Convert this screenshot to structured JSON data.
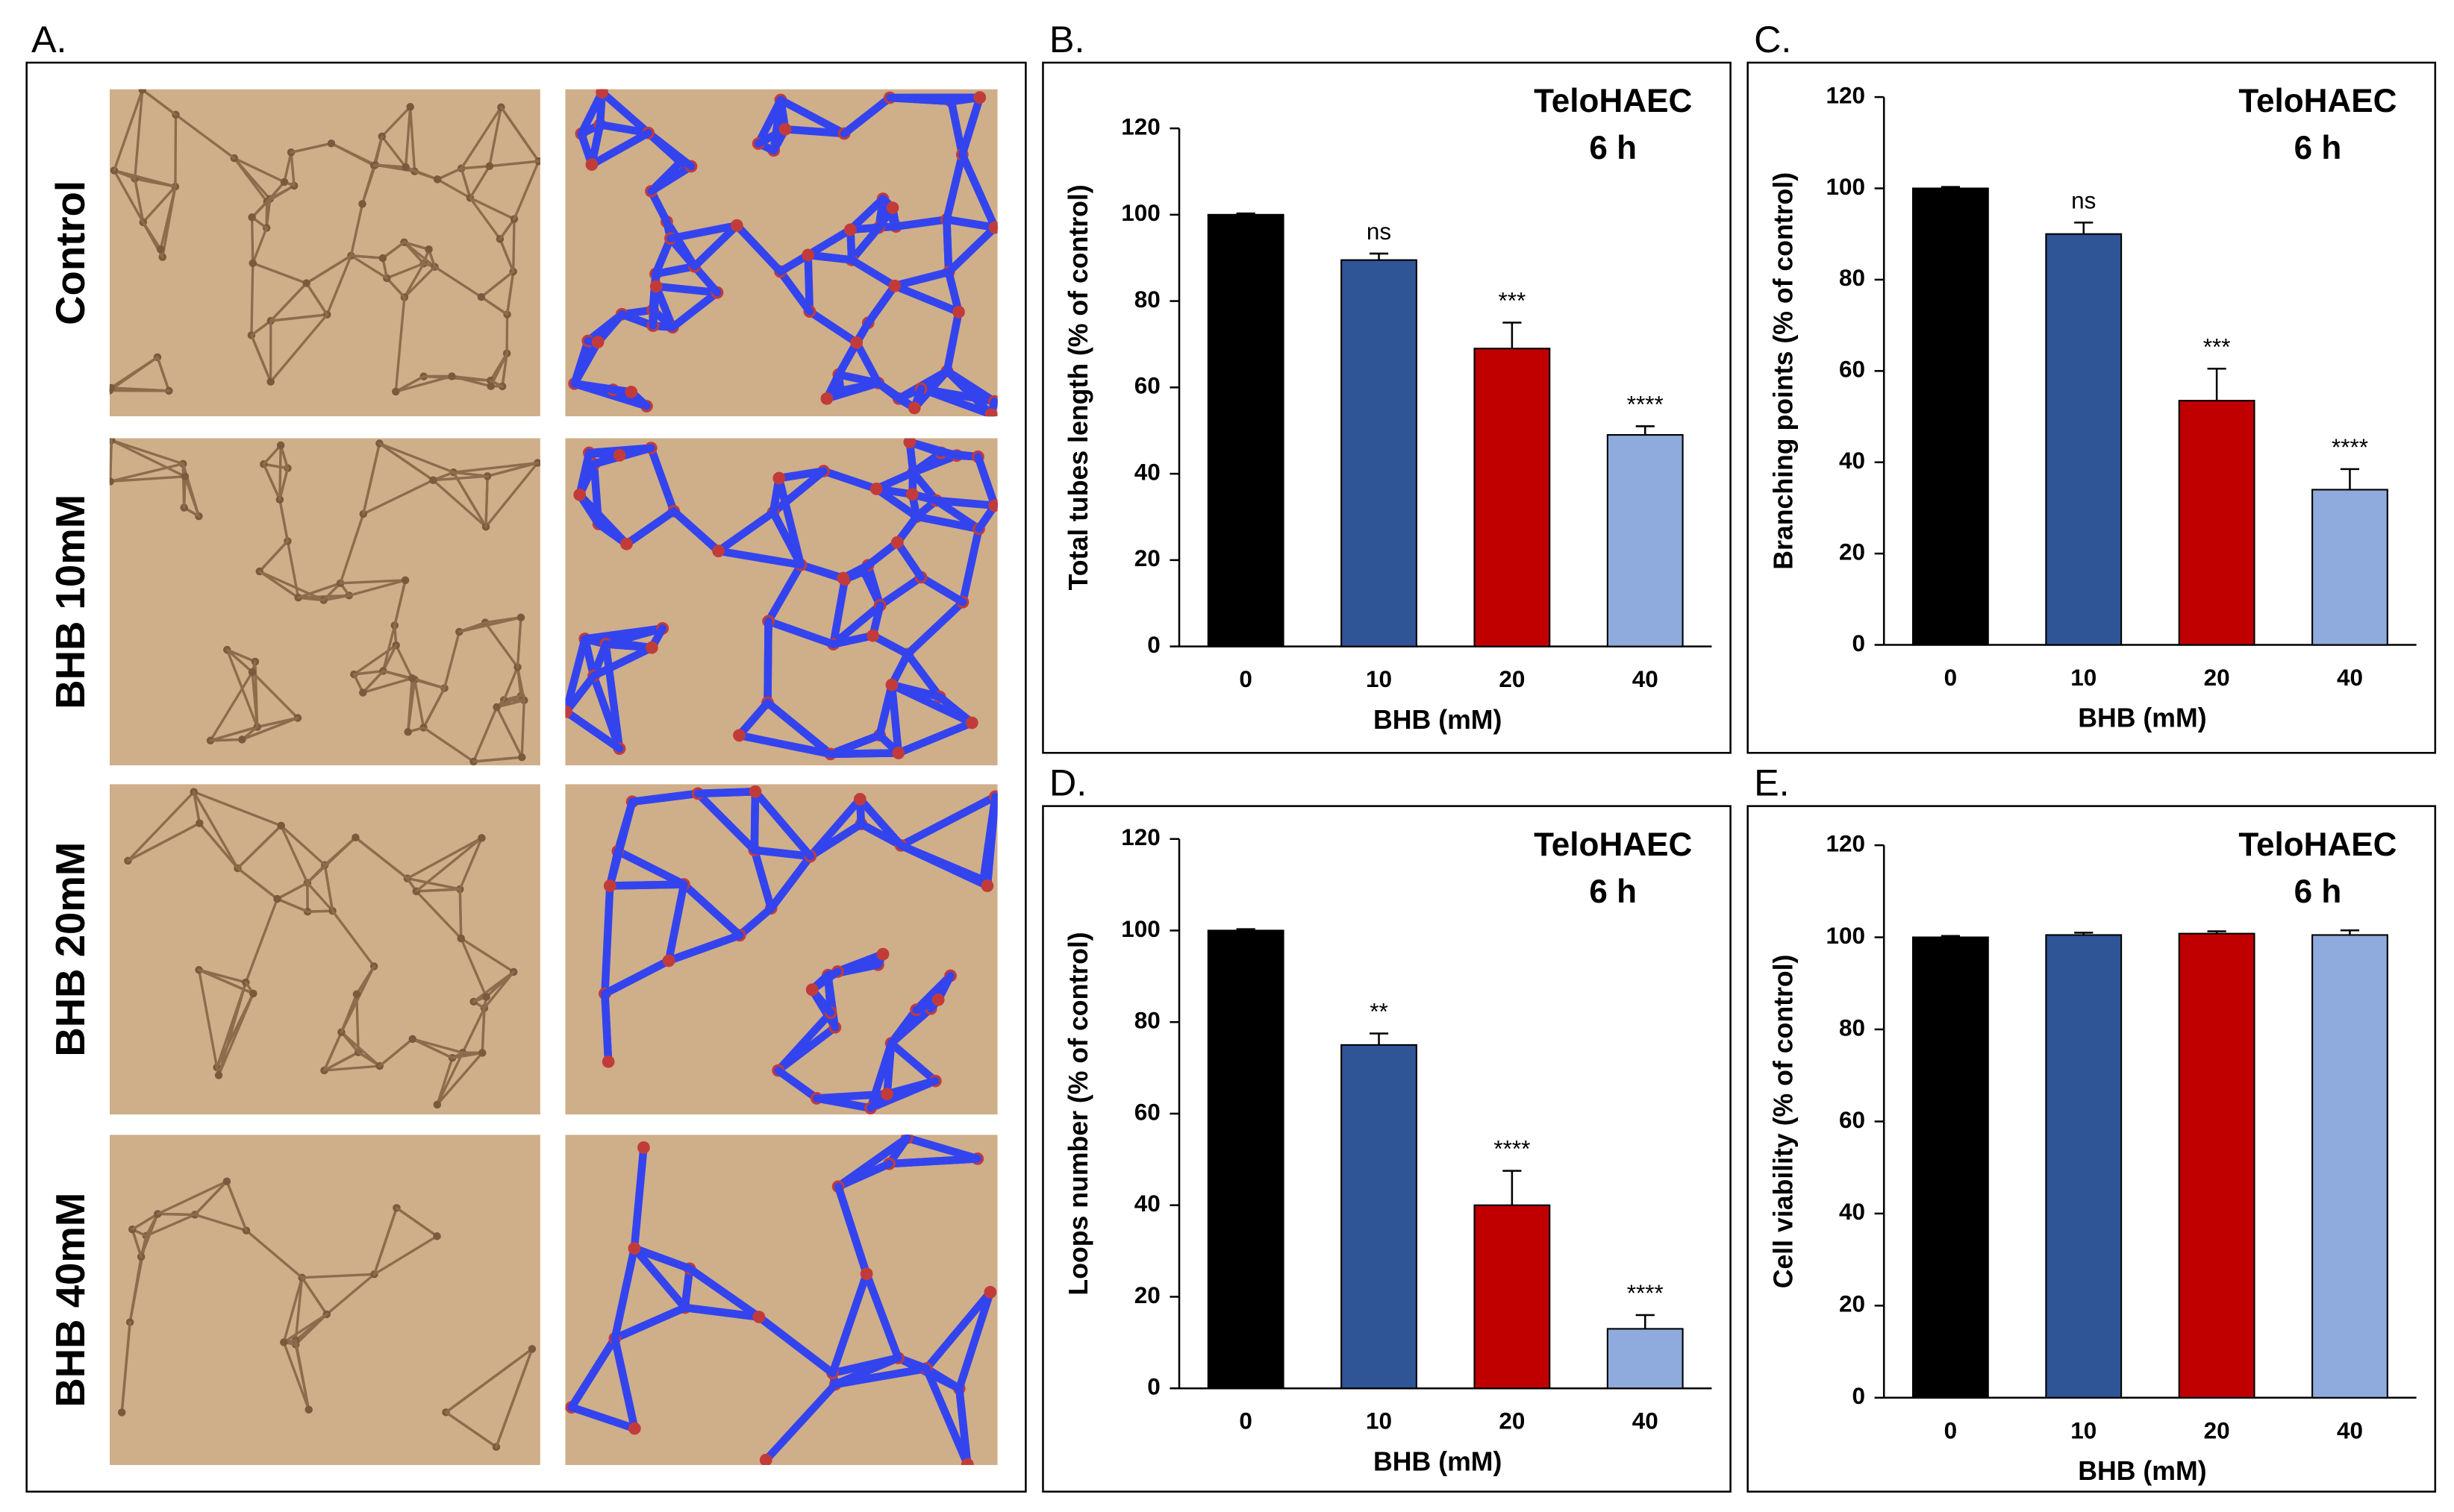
{
  "figure_a": {
    "label": "A.",
    "rows": [
      "Control",
      "BHB 10mM",
      "BHB 20mM",
      "BHB 40mM"
    ]
  },
  "chart_data": [
    {
      "type": "bar",
      "panel_label": "B.",
      "title": "TeloHAEC",
      "subtitle": "6 h",
      "xlabel": "BHB (mM)",
      "ylabel": "Total tubes length (% of control)",
      "categories": [
        "0",
        "10",
        "20",
        "40"
      ],
      "values": [
        100,
        89.5,
        69,
        49
      ],
      "errors": [
        0.3,
        1.5,
        6,
        2
      ],
      "annotations": [
        null,
        "ns",
        "***",
        "****"
      ],
      "colors": [
        "#000000",
        "#2f5597",
        "#c00000",
        "#8faadc"
      ],
      "ylim": [
        0,
        120
      ],
      "yticks": [
        0,
        20,
        40,
        60,
        80,
        100,
        120
      ]
    },
    {
      "type": "bar",
      "panel_label": "C.",
      "title": "TeloHAEC",
      "subtitle": "6 h",
      "xlabel": "BHB (mM)",
      "ylabel": "Branching points (% of control)",
      "categories": [
        "0",
        "10",
        "20",
        "40"
      ],
      "values": [
        100,
        90,
        53.5,
        34
      ],
      "errors": [
        0.3,
        2.5,
        7,
        4.5
      ],
      "annotations": [
        null,
        "ns",
        "***",
        "****"
      ],
      "colors": [
        "#000000",
        "#2f5597",
        "#c00000",
        "#8faadc"
      ],
      "ylim": [
        0,
        120
      ],
      "yticks": [
        0,
        20,
        40,
        60,
        80,
        100,
        120
      ]
    },
    {
      "type": "bar",
      "panel_label": "D.",
      "title": "TeloHAEC",
      "subtitle": "6 h",
      "xlabel": "BHB (mM)",
      "ylabel": "Loops number (% of control)",
      "categories": [
        "0",
        "10",
        "20",
        "40"
      ],
      "values": [
        100,
        75,
        40,
        13
      ],
      "errors": [
        0.3,
        2.5,
        7.5,
        3
      ],
      "annotations": [
        null,
        "**",
        "****",
        "****"
      ],
      "colors": [
        "#000000",
        "#2f5597",
        "#c00000",
        "#8faadc"
      ],
      "ylim": [
        0,
        120
      ],
      "yticks": [
        0,
        20,
        40,
        60,
        80,
        100,
        120
      ]
    },
    {
      "type": "bar",
      "panel_label": "E.",
      "title": "TeloHAEC",
      "subtitle": "6 h",
      "xlabel": "BHB (mM)",
      "ylabel": "Cell viability (% of control)",
      "categories": [
        "0",
        "10",
        "20",
        "40"
      ],
      "values": [
        100,
        100.5,
        100.8,
        100.5
      ],
      "errors": [
        0.3,
        0.5,
        0.5,
        1
      ],
      "annotations": [
        null,
        null,
        null,
        null
      ],
      "colors": [
        "#000000",
        "#2f5597",
        "#c00000",
        "#8faadc"
      ],
      "ylim": [
        0,
        120
      ],
      "yticks": [
        0,
        20,
        40,
        60,
        80,
        100,
        120
      ]
    }
  ]
}
